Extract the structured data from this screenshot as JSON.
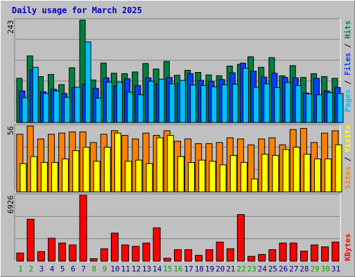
{
  "chart_data": {
    "title": "Daily usage for March 2025",
    "type": "bar",
    "categories": [
      "1",
      "2",
      "3",
      "4",
      "5",
      "6",
      "7",
      "8",
      "9",
      "10",
      "11",
      "12",
      "13",
      "14",
      "15",
      "16",
      "17",
      "18",
      "19",
      "20",
      "21",
      "22",
      "23",
      "24",
      "25",
      "26",
      "27",
      "28",
      "29",
      "30",
      "31"
    ],
    "weekend_days": [
      "1",
      "2",
      "8",
      "9",
      "15",
      "16",
      "22",
      "23",
      "29",
      "30"
    ],
    "panels": [
      {
        "name": "hits-files-pages",
        "max_label": "243",
        "ylim": [
          0,
          243
        ],
        "series": [
          {
            "name": "Hits",
            "color": "#008040",
            "values": [
              105,
              158,
              109,
              114,
              90,
              130,
              243,
              101,
              141,
              117,
              116,
              120,
              140,
              127,
              145,
              112,
              124,
              119,
              113,
              111,
              134,
              138,
              156,
              131,
              154,
              111,
              135,
              107,
              116,
              109,
              105
            ]
          },
          {
            "name": "Files",
            "color": "#0040ff",
            "values": [
              75,
              125,
              73,
              79,
              69,
              83,
              91,
              81,
              106,
              87,
              104,
              88,
              106,
              92,
              107,
              93,
              116,
              100,
              98,
              102,
              118,
              141,
              122,
              108,
              117,
              107,
              106,
              70,
              105,
              75,
              83
            ]
          },
          {
            "name": "Pages",
            "color": "#00c0ff",
            "values": [
              59,
              131,
              69,
              75,
              60,
              84,
              191,
              58,
              96,
              96,
              72,
              66,
              98,
              103,
              92,
              100,
              89,
              88,
              85,
              90,
              91,
              129,
              84,
              92,
              83,
              95,
              88,
              68,
              66,
              71,
              69
            ]
          }
        ]
      },
      {
        "name": "visits-sites",
        "max_label": "56",
        "ylim": [
          0,
          56
        ],
        "series": [
          {
            "name": "Visits",
            "color": "#ff8000",
            "values": [
              49,
              56,
              45,
              49,
              50,
              51,
              51,
              42,
              49,
              52,
              48,
              45,
              50,
              48,
              52,
              43,
              45,
              41,
              41,
              42,
              46,
              45,
              40,
              45,
              46,
              40,
              53,
              54,
              42,
              50,
              52
            ]
          },
          {
            "name": "Sites",
            "color": "#ffff00",
            "values": [
              24,
              30,
              25,
              25,
              28,
              35,
              38,
              26,
              38,
              50,
              26,
              27,
              24,
              46,
              48,
              30,
              25,
              27,
              26,
              23,
              31,
              25,
              11,
              32,
              31,
              36,
              38,
              32,
              28,
              28,
              40
            ]
          }
        ]
      },
      {
        "name": "kbytes",
        "max_label": "6926",
        "ylim": [
          0,
          6926
        ],
        "series": [
          {
            "name": "KBytes",
            "color": "#ff0000",
            "values": [
              850,
              4400,
              1000,
              2400,
              1900,
              1700,
              7000,
              250,
              1300,
              2950,
              1700,
              1550,
              1900,
              3500,
              300,
              1200,
              1200,
              600,
              1200,
              2000,
              1300,
              4900,
              500,
              700,
              1200,
              1900,
              1900,
              1050,
              1700,
              1500,
              2000
            ]
          }
        ]
      }
    ],
    "side_labels": [
      {
        "text": "Pages",
        "color": "#00c0ff"
      },
      {
        "text": " / ",
        "color": "#000000"
      },
      {
        "text": "Files",
        "color": "#0040ff"
      },
      {
        "text": " / ",
        "color": "#000000"
      },
      {
        "text": "Hits",
        "color": "#008040"
      },
      {
        "text": "Sites",
        "color": "#ff8000"
      },
      {
        "text": " / ",
        "color": "#000000"
      },
      {
        "text": "Visits",
        "color": "#ffff00"
      },
      {
        "text": "KBytes",
        "color": "#ff0000"
      }
    ],
    "colors": {
      "weekday_label": "#000080",
      "weekend_label": "#00a000",
      "plot_bg": "#c0c0c0",
      "title": "#0000c0"
    }
  }
}
